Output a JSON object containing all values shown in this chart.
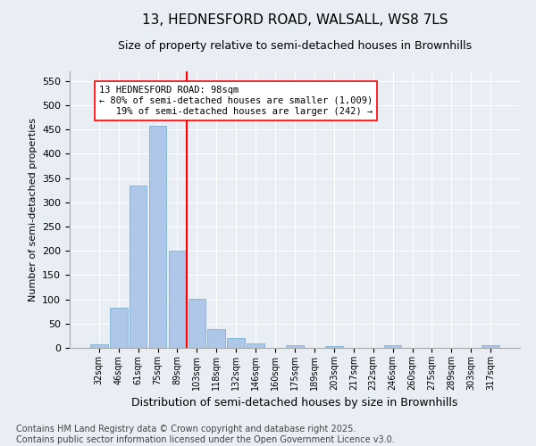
{
  "title_line1": "13, HEDNESFORD ROAD, WALSALL, WS8 7LS",
  "title_line2": "Size of property relative to semi-detached houses in Brownhills",
  "xlabel": "Distribution of semi-detached houses by size in Brownhills",
  "ylabel": "Number of semi-detached properties",
  "categories": [
    "32sqm",
    "46sqm",
    "61sqm",
    "75sqm",
    "89sqm",
    "103sqm",
    "118sqm",
    "132sqm",
    "146sqm",
    "160sqm",
    "175sqm",
    "189sqm",
    "203sqm",
    "217sqm",
    "232sqm",
    "246sqm",
    "260sqm",
    "275sqm",
    "289sqm",
    "303sqm",
    "317sqm"
  ],
  "values": [
    8,
    82,
    335,
    457,
    200,
    101,
    38,
    20,
    9,
    0,
    6,
    0,
    4,
    0,
    0,
    5,
    0,
    0,
    0,
    0,
    5
  ],
  "bar_color": "#aec6e8",
  "bar_edge_color": "#6aaad4",
  "vline_x": 4.5,
  "vline_color": "red",
  "annotation_text": "13 HEDNESFORD ROAD: 98sqm\n← 80% of semi-detached houses are smaller (1,009)\n   19% of semi-detached houses are larger (242) →",
  "annotation_box_color": "white",
  "annotation_box_edge": "red",
  "ylim": [
    0,
    570
  ],
  "yticks": [
    0,
    50,
    100,
    150,
    200,
    250,
    300,
    350,
    400,
    450,
    500,
    550
  ],
  "background_color": "#e8eef4",
  "footer_line1": "Contains HM Land Registry data © Crown copyright and database right 2025.",
  "footer_line2": "Contains public sector information licensed under the Open Government Licence v3.0.",
  "title_fontsize": 11,
  "subtitle_fontsize": 9,
  "footer_fontsize": 7,
  "ylabel_fontsize": 8,
  "xlabel_fontsize": 9,
  "annotation_fontsize": 7.5
}
